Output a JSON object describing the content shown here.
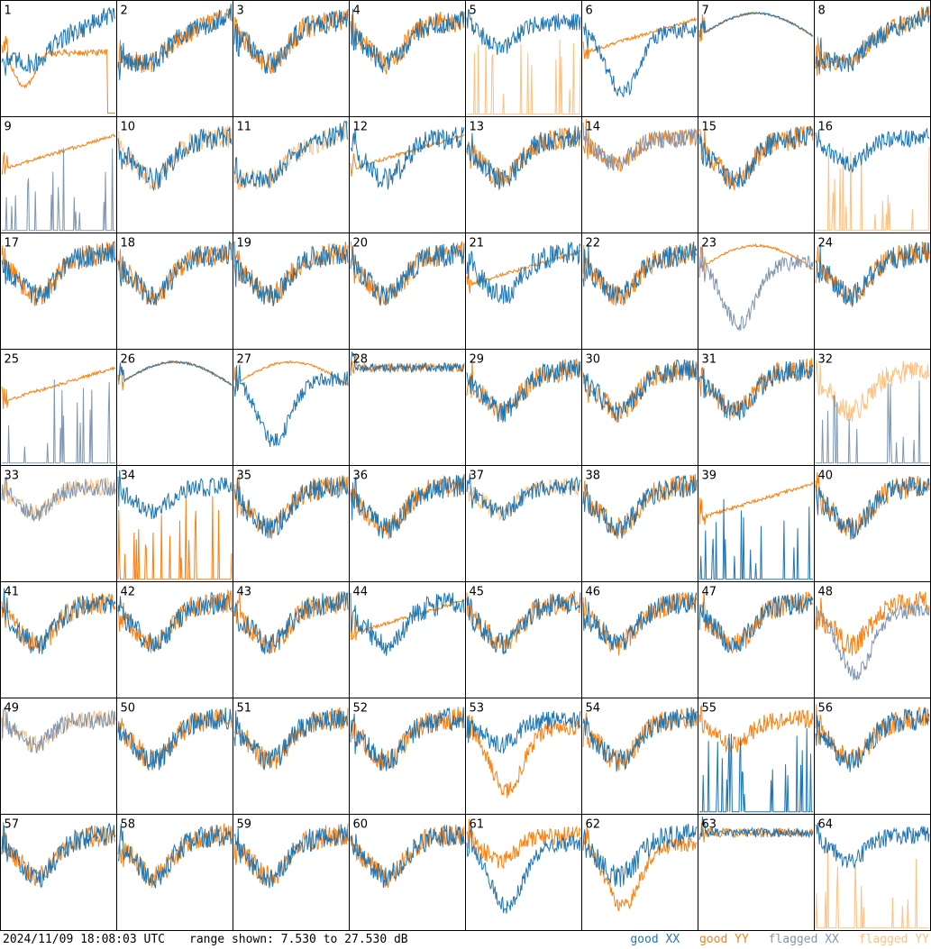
{
  "footer": {
    "timestamp": "2024/11/09 18:08:03 UTC",
    "range": "range shown: 7.530 to 27.530 dB"
  },
  "legend": {
    "good_xx": "good XX",
    "good_yy": "good YY",
    "flagged_xx": "flagged XX",
    "flagged_yy": "flagged YY"
  },
  "colors": {
    "good_xx": "#1f77b4",
    "good_yy": "#ff7f0e",
    "flagged_xx": "#7f97b2",
    "flagged_yy": "#ffc080"
  },
  "chart_data": {
    "type": "line",
    "y_unit": "dB",
    "ylim": [
      7.53,
      27.53
    ],
    "grid_rows": 8,
    "grid_cols": 8,
    "tiles": [
      {
        "id": "1",
        "xx": "good",
        "yy": "good",
        "xx_shape": "rising",
        "yy_shape": "dip_drop"
      },
      {
        "id": "2",
        "xx": "good",
        "yy": "good",
        "xx_shape": "rising",
        "yy_shape": "rising"
      },
      {
        "id": "3",
        "xx": "good",
        "yy": "good",
        "xx_shape": "valley",
        "yy_shape": "valley"
      },
      {
        "id": "4",
        "xx": "good",
        "yy": "good",
        "xx_shape": "valley",
        "yy_shape": "valley"
      },
      {
        "id": "5",
        "xx": "good",
        "yy": "flagged",
        "xx_shape": "valley_high",
        "yy_shape": "spikes"
      },
      {
        "id": "6",
        "xx": "good",
        "yy": "good",
        "xx_shape": "deep_dip",
        "yy_shape": "smooth_rise"
      },
      {
        "id": "7",
        "xx": "good",
        "yy": "good",
        "xx_shape": "smooth_arch",
        "yy_shape": "smooth_arch"
      },
      {
        "id": "8",
        "xx": "good",
        "yy": "good",
        "xx_shape": "rising",
        "yy_shape": "rising"
      },
      {
        "id": "9",
        "xx": "flagged",
        "yy": "good",
        "xx_shape": "spikes",
        "yy_shape": "smooth_rise"
      },
      {
        "id": "10",
        "xx": "good",
        "yy": "flagged",
        "xx_shape": "valley",
        "yy_shape": "valley"
      },
      {
        "id": "11",
        "xx": "good",
        "yy": "flagged",
        "xx_shape": "rising",
        "yy_shape": "rising"
      },
      {
        "id": "12",
        "xx": "good",
        "yy": "good",
        "xx_shape": "valley",
        "yy_shape": "smooth_rise"
      },
      {
        "id": "13",
        "xx": "good",
        "yy": "good",
        "xx_shape": "valley",
        "yy_shape": "valley"
      },
      {
        "id": "14",
        "xx": "flagged",
        "yy": "good",
        "xx_shape": "valley_high",
        "yy_shape": "valley_high"
      },
      {
        "id": "15",
        "xx": "good",
        "yy": "good",
        "xx_shape": "valley",
        "yy_shape": "valley"
      },
      {
        "id": "16",
        "xx": "good",
        "yy": "flagged",
        "xx_shape": "valley_high",
        "yy_shape": "spikes"
      },
      {
        "id": "17",
        "xx": "good",
        "yy": "good",
        "xx_shape": "valley",
        "yy_shape": "valley"
      },
      {
        "id": "18",
        "xx": "good",
        "yy": "good",
        "xx_shape": "valley",
        "yy_shape": "valley"
      },
      {
        "id": "19",
        "xx": "good",
        "yy": "good",
        "xx_shape": "valley",
        "yy_shape": "valley"
      },
      {
        "id": "20",
        "xx": "good",
        "yy": "good",
        "xx_shape": "valley",
        "yy_shape": "valley"
      },
      {
        "id": "21",
        "xx": "good",
        "yy": "good",
        "xx_shape": "valley",
        "yy_shape": "smooth_rise"
      },
      {
        "id": "22",
        "xx": "good",
        "yy": "good",
        "xx_shape": "valley",
        "yy_shape": "valley"
      },
      {
        "id": "23",
        "xx": "flagged",
        "yy": "good",
        "xx_shape": "deep_dip",
        "yy_shape": "smooth_arch"
      },
      {
        "id": "24",
        "xx": "good",
        "yy": "good",
        "xx_shape": "valley",
        "yy_shape": "valley"
      },
      {
        "id": "25",
        "xx": "flagged",
        "yy": "good",
        "xx_shape": "spikes",
        "yy_shape": "smooth_rise"
      },
      {
        "id": "26",
        "xx": "good",
        "yy": "good",
        "xx_shape": "smooth_arch",
        "yy_shape": "smooth_arch"
      },
      {
        "id": "27",
        "xx": "good",
        "yy": "good",
        "xx_shape": "deep_dip",
        "yy_shape": "smooth_arch"
      },
      {
        "id": "28",
        "xx": "good",
        "yy": "good",
        "xx_shape": "flat_high",
        "yy_shape": "flat_high"
      },
      {
        "id": "29",
        "xx": "good",
        "yy": "good",
        "xx_shape": "valley",
        "yy_shape": "valley"
      },
      {
        "id": "30",
        "xx": "good",
        "yy": "good",
        "xx_shape": "valley",
        "yy_shape": "valley"
      },
      {
        "id": "31",
        "xx": "good",
        "yy": "good",
        "xx_shape": "valley",
        "yy_shape": "valley"
      },
      {
        "id": "32",
        "xx": "flagged",
        "yy": "flagged",
        "xx_shape": "spikes",
        "yy_shape": "valley"
      },
      {
        "id": "33",
        "xx": "flagged",
        "yy": "flagged",
        "xx_shape": "valley_high",
        "yy_shape": "valley_high"
      },
      {
        "id": "34",
        "xx": "good",
        "yy": "good",
        "xx_shape": "valley_high",
        "yy_shape": "spikes"
      },
      {
        "id": "35",
        "xx": "good",
        "yy": "good",
        "xx_shape": "valley",
        "yy_shape": "valley"
      },
      {
        "id": "36",
        "xx": "good",
        "yy": "good",
        "xx_shape": "valley",
        "yy_shape": "valley"
      },
      {
        "id": "37",
        "xx": "good",
        "yy": "flagged",
        "xx_shape": "valley_high",
        "yy_shape": "valley_high"
      },
      {
        "id": "38",
        "xx": "good",
        "yy": "good",
        "xx_shape": "valley",
        "yy_shape": "valley"
      },
      {
        "id": "39",
        "xx": "good",
        "yy": "good",
        "xx_shape": "spikes",
        "yy_shape": "smooth_rise"
      },
      {
        "id": "40",
        "xx": "good",
        "yy": "good",
        "xx_shape": "valley",
        "yy_shape": "valley"
      },
      {
        "id": "41",
        "xx": "good",
        "yy": "good",
        "xx_shape": "valley",
        "yy_shape": "valley"
      },
      {
        "id": "42",
        "xx": "good",
        "yy": "good",
        "xx_shape": "valley",
        "yy_shape": "valley"
      },
      {
        "id": "43",
        "xx": "good",
        "yy": "good",
        "xx_shape": "valley",
        "yy_shape": "valley"
      },
      {
        "id": "44",
        "xx": "good",
        "yy": "good",
        "xx_shape": "valley",
        "yy_shape": "smooth_rise"
      },
      {
        "id": "45",
        "xx": "good",
        "yy": "good",
        "xx_shape": "valley",
        "yy_shape": "valley"
      },
      {
        "id": "46",
        "xx": "good",
        "yy": "good",
        "xx_shape": "valley",
        "yy_shape": "valley"
      },
      {
        "id": "47",
        "xx": "good",
        "yy": "good",
        "xx_shape": "valley",
        "yy_shape": "valley"
      },
      {
        "id": "48",
        "xx": "flagged",
        "yy": "good",
        "xx_shape": "deep_dip",
        "yy_shape": "valley"
      },
      {
        "id": "49",
        "xx": "flagged",
        "yy": "flagged",
        "xx_shape": "valley_high",
        "yy_shape": "valley_high"
      },
      {
        "id": "50",
        "xx": "good",
        "yy": "good",
        "xx_shape": "valley",
        "yy_shape": "valley"
      },
      {
        "id": "51",
        "xx": "good",
        "yy": "good",
        "xx_shape": "valley",
        "yy_shape": "valley"
      },
      {
        "id": "52",
        "xx": "good",
        "yy": "good",
        "xx_shape": "valley",
        "yy_shape": "valley"
      },
      {
        "id": "53",
        "xx": "good",
        "yy": "good",
        "xx_shape": "valley_high",
        "yy_shape": "deep_dip"
      },
      {
        "id": "54",
        "xx": "good",
        "yy": "good",
        "xx_shape": "valley",
        "yy_shape": "valley"
      },
      {
        "id": "55",
        "xx": "good",
        "yy": "good",
        "xx_shape": "spikes",
        "yy_shape": "valley_high"
      },
      {
        "id": "56",
        "xx": "good",
        "yy": "good",
        "xx_shape": "valley",
        "yy_shape": "valley"
      },
      {
        "id": "57",
        "xx": "good",
        "yy": "good",
        "xx_shape": "valley",
        "yy_shape": "valley"
      },
      {
        "id": "58",
        "xx": "good",
        "yy": "good",
        "xx_shape": "valley",
        "yy_shape": "valley"
      },
      {
        "id": "59",
        "xx": "good",
        "yy": "good",
        "xx_shape": "valley",
        "yy_shape": "valley"
      },
      {
        "id": "60",
        "xx": "good",
        "yy": "good",
        "xx_shape": "valley",
        "yy_shape": "valley"
      },
      {
        "id": "61",
        "xx": "good",
        "yy": "good",
        "xx_shape": "deep_dip",
        "yy_shape": "valley_high"
      },
      {
        "id": "62",
        "xx": "good",
        "yy": "good",
        "xx_shape": "valley",
        "yy_shape": "deep_dip"
      },
      {
        "id": "63",
        "xx": "good",
        "yy": "good",
        "xx_shape": "flat_high",
        "yy_shape": "flat_high"
      },
      {
        "id": "64",
        "xx": "good",
        "yy": "flagged",
        "xx_shape": "valley_high",
        "yy_shape": "spikes"
      }
    ]
  }
}
